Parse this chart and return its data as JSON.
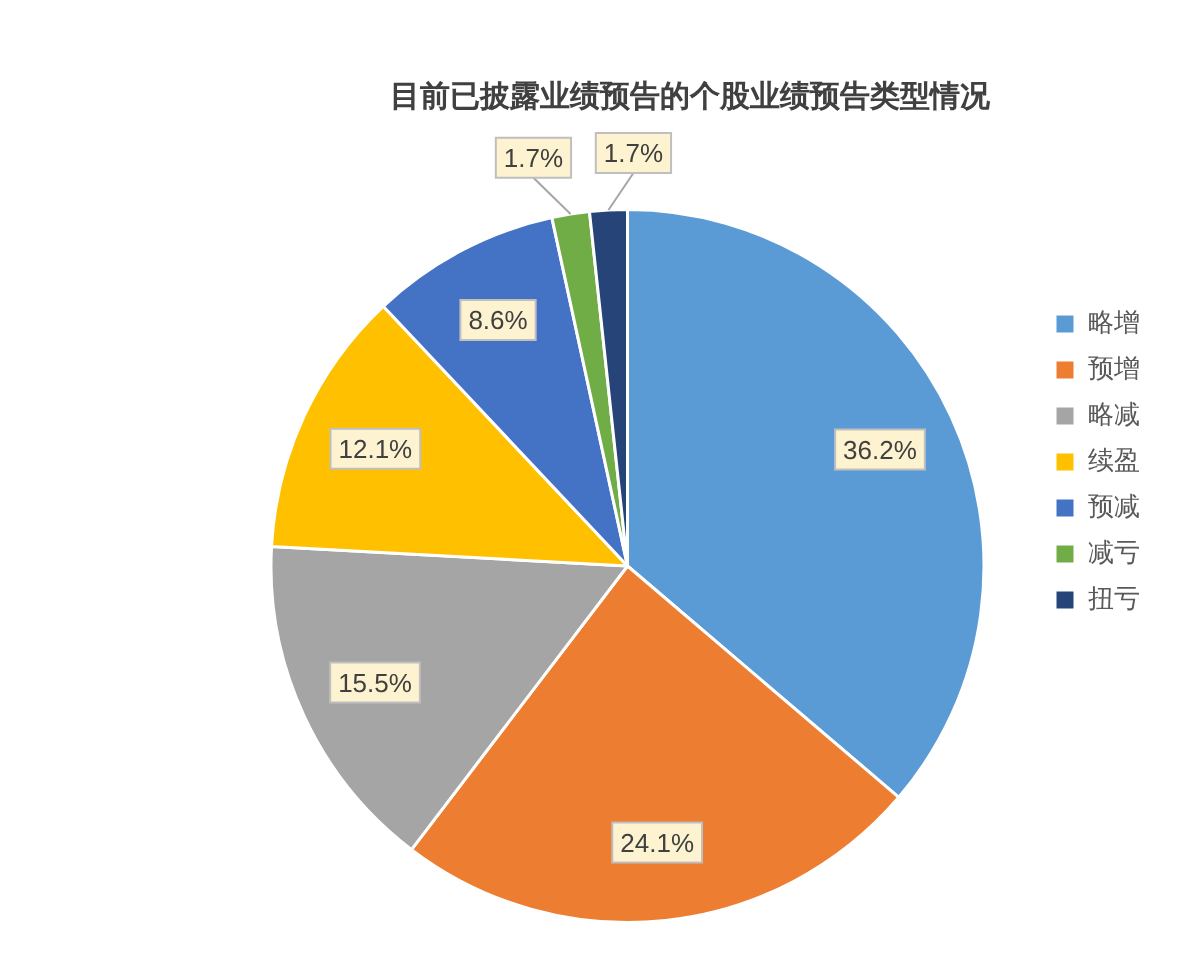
{
  "chart_data": {
    "type": "pie",
    "title": "目前已披露业绩预告的个股业绩预告类型情况",
    "categories": [
      "略增",
      "预增",
      "略减",
      "续盈",
      "预减",
      "减亏",
      "扭亏"
    ],
    "values": [
      36.2,
      24.1,
      15.5,
      12.1,
      8.6,
      1.7,
      1.7
    ],
    "colors": [
      "#5b9bd5",
      "#ed7d31",
      "#a5a5a5",
      "#ffc000",
      "#4472c4",
      "#70ad47",
      "#264478"
    ],
    "value_labels": [
      "36.2%",
      "24.1%",
      "15.5%",
      "12.1%",
      "8.6%",
      "1.7%",
      "1.7%"
    ],
    "legend": "right"
  }
}
